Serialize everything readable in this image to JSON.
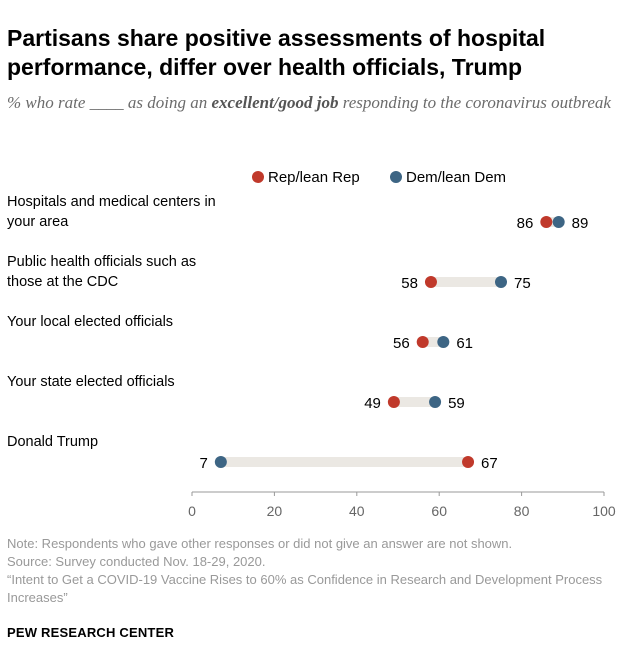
{
  "header": {
    "title": "Partisans share positive assessments of hospital performance, differ over health officials, Trump",
    "subtitle_pre": "% who rate ____ as doing an ",
    "subtitle_em": "excellent/good job",
    "subtitle_post": " responding to the coronavirus outbreak"
  },
  "colors": {
    "rep": "#c0392b",
    "dem": "#3d6584",
    "connector": "#ebe8e3",
    "axis": "#999999"
  },
  "chart_data": {
    "type": "dot",
    "title": "Partisans share positive assessments of hospital performance, differ over health officials, Trump",
    "xlim": [
      0,
      100
    ],
    "ticks": [
      "0",
      "20",
      "40",
      "60",
      "80",
      "100"
    ],
    "tick_values": [
      0,
      20,
      40,
      60,
      80,
      100
    ],
    "legend_position": "top-right",
    "series": [
      {
        "name": "Rep/lean Rep",
        "key": "rep",
        "values": [
          86,
          58,
          56,
          49,
          67
        ]
      },
      {
        "name": "Dem/lean Dem",
        "key": "dem",
        "values": [
          89,
          75,
          61,
          59,
          7
        ]
      }
    ],
    "categories": [
      {
        "lines": [
          "Hospitals and medical centers in",
          "your area"
        ]
      },
      {
        "lines": [
          "Public health officials such as",
          "those at the CDC"
        ]
      },
      {
        "lines": [
          "Your local elected officials"
        ]
      },
      {
        "lines": [
          "Your state elected officials"
        ]
      },
      {
        "lines": [
          "Donald Trump"
        ]
      }
    ]
  },
  "notes": {
    "note": "Note: Respondents who gave other responses or did not give an answer are not shown.",
    "source": "Source: Survey conducted Nov. 18-29, 2020.",
    "report": "“Intent to Get a COVID-19 Vaccine Rises to 60% as Confidence in Research and Development Process Increases”"
  },
  "footer": {
    "org": "PEW RESEARCH CENTER"
  }
}
